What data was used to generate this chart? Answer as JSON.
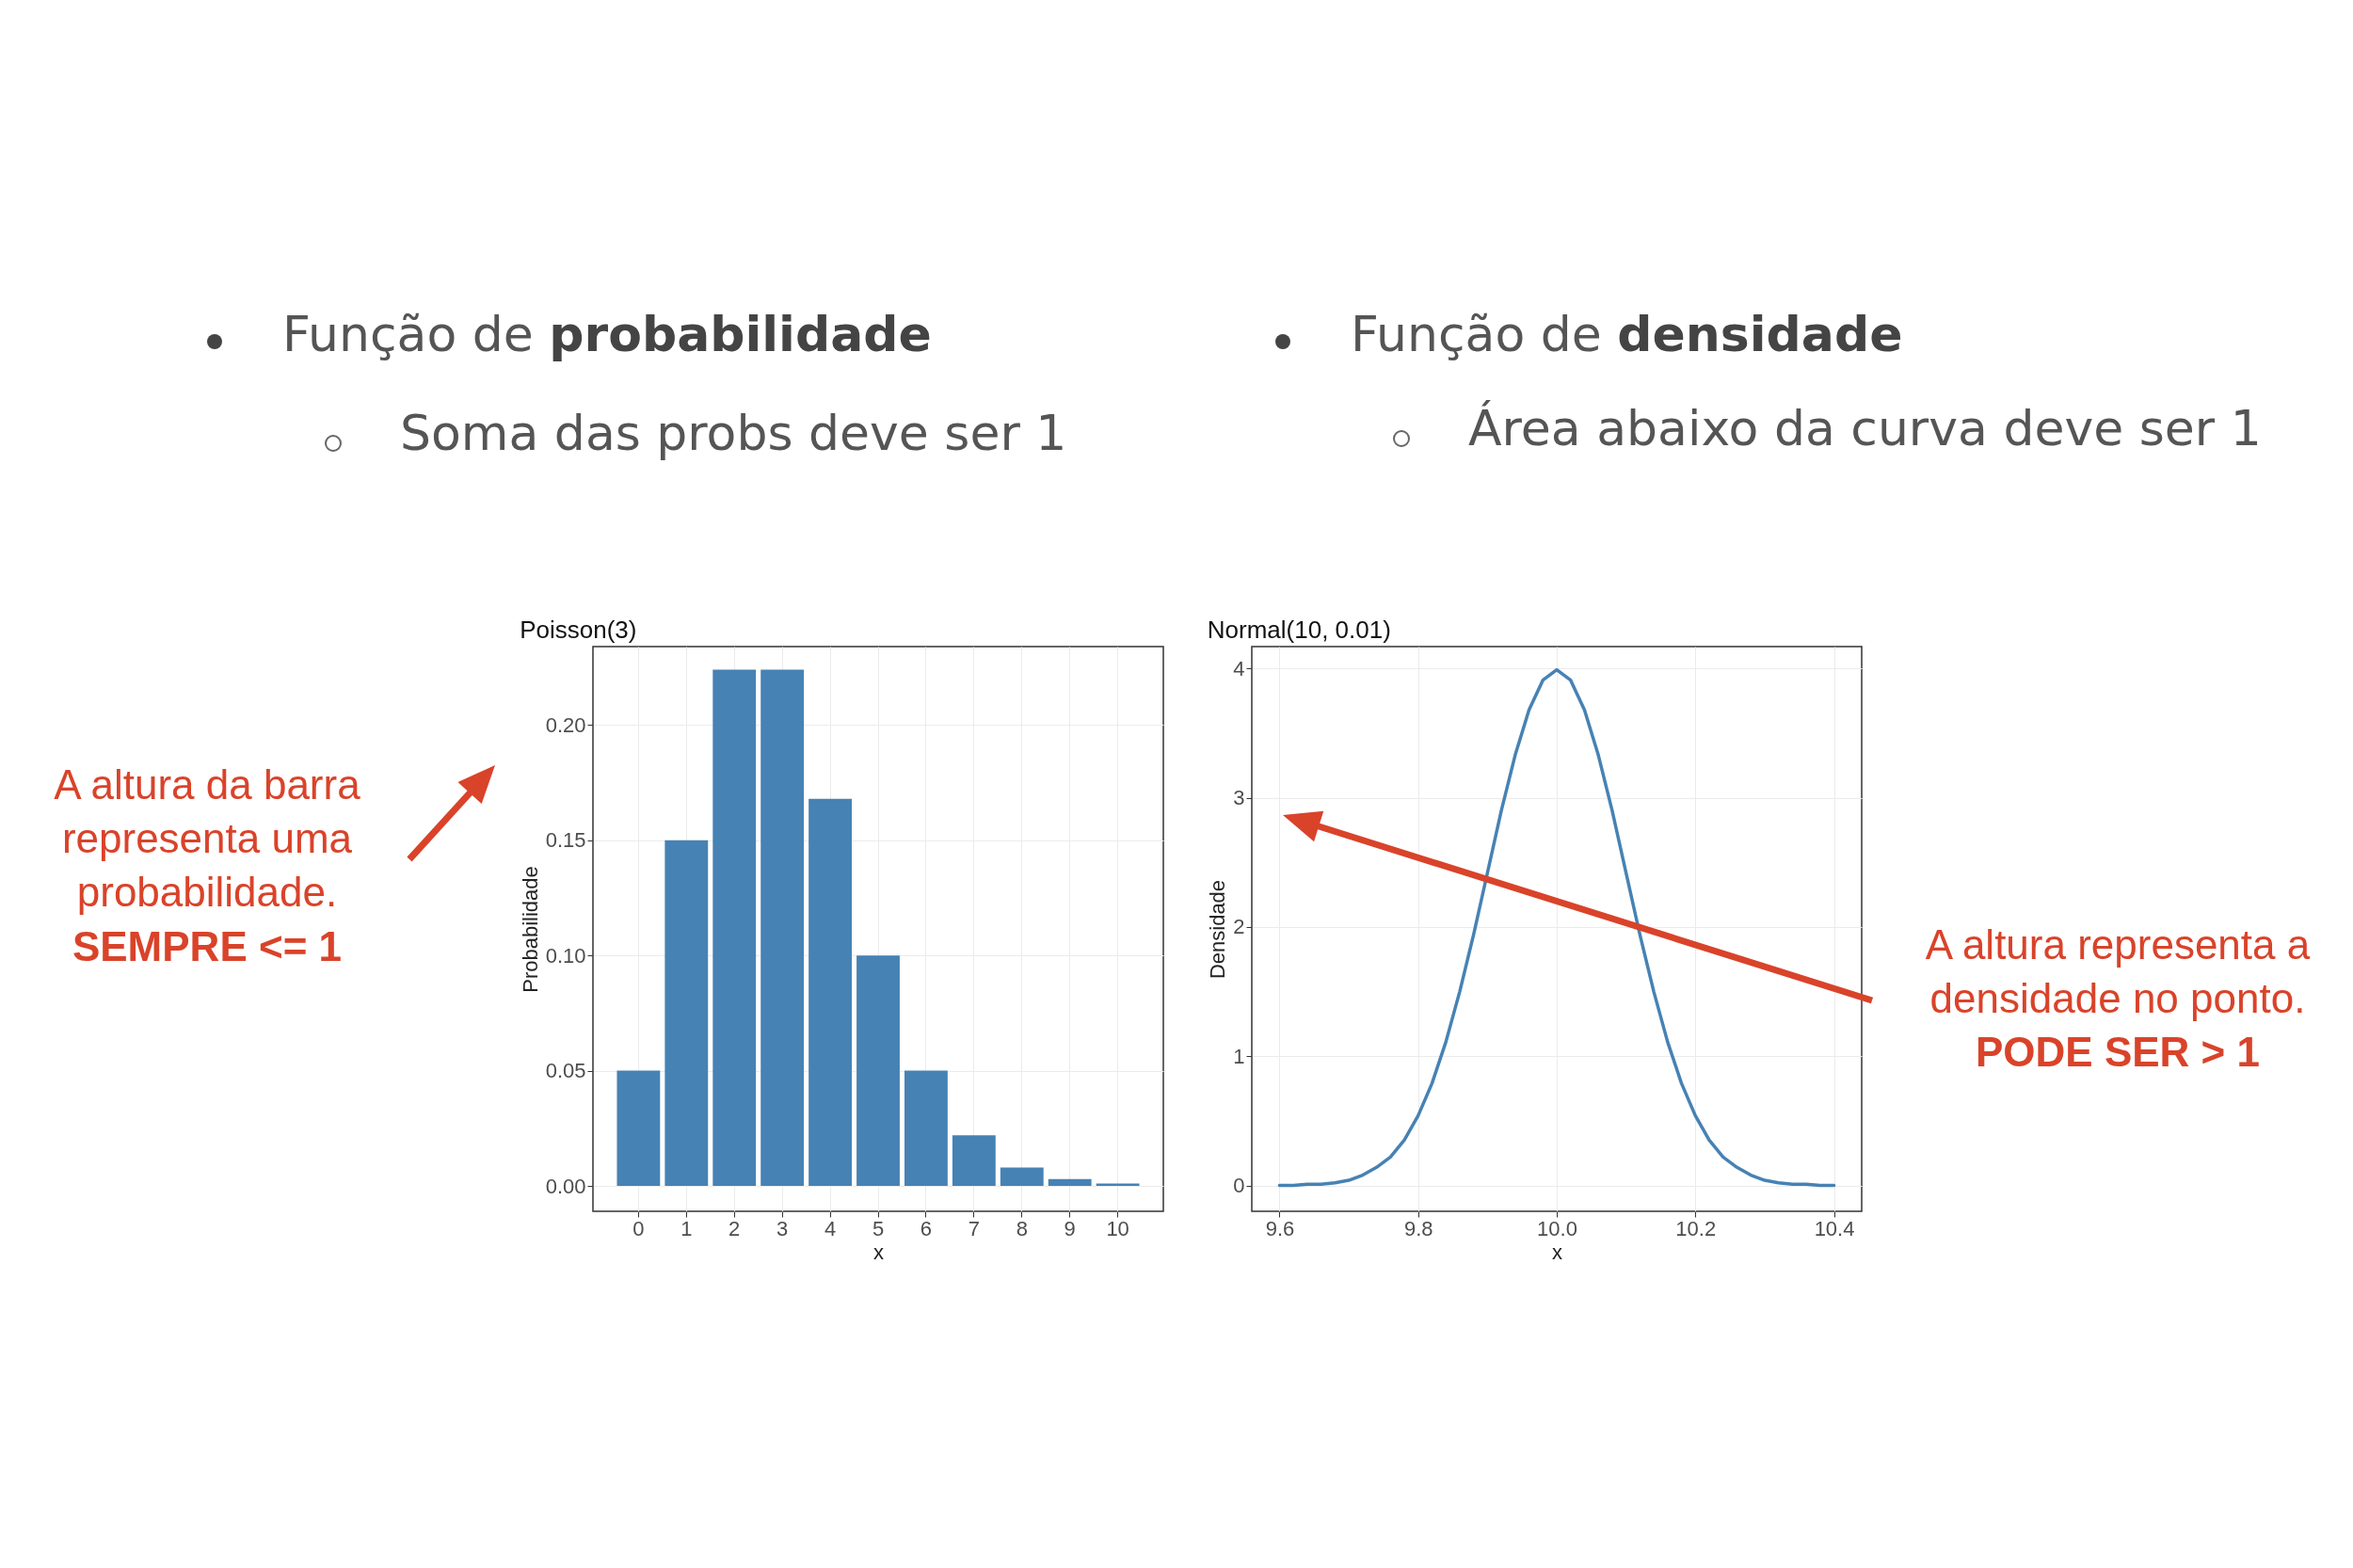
{
  "chart_data": [
    {
      "type": "bar",
      "title": "Poisson(3)",
      "xlabel": "x",
      "ylabel": "Probabilidade",
      "categories": [
        "0",
        "1",
        "2",
        "3",
        "4",
        "5",
        "6",
        "7",
        "8",
        "9",
        "10"
      ],
      "values": [
        0.05,
        0.15,
        0.224,
        0.224,
        0.168,
        0.1,
        0.05,
        0.022,
        0.008,
        0.003,
        0.001
      ],
      "color": "#4682b4",
      "ylim": [
        -0.011,
        0.234
      ],
      "yticks": [
        {
          "value": 0,
          "label": "0.00"
        },
        {
          "value": 0.05,
          "label": "0.05"
        },
        {
          "value": 0.1,
          "label": "0.10"
        },
        {
          "value": 0.15,
          "label": "0.15"
        },
        {
          "value": 0.2,
          "label": "0.20"
        }
      ],
      "grid": true,
      "annotations": [
        "Função de probabilidade",
        "Soma das probs deve ser 1",
        "A altura da barra representa uma probabilidade.",
        "SEMPRE <= 1"
      ]
    },
    {
      "type": "line",
      "title": "Normal(10, 0.01)",
      "xlabel": "x",
      "ylabel": "Densidade",
      "x": [
        9.6,
        9.62,
        9.64,
        9.66,
        9.68,
        9.7,
        9.72,
        9.74,
        9.76,
        9.78,
        9.8,
        9.82,
        9.84,
        9.86,
        9.88,
        9.9,
        9.92,
        9.94,
        9.96,
        9.98,
        10.0,
        10.02,
        10.04,
        10.06,
        10.08,
        10.1,
        10.12,
        10.14,
        10.16,
        10.18,
        10.2,
        10.22,
        10.24,
        10.26,
        10.28,
        10.3,
        10.32,
        10.34,
        10.36,
        10.38,
        10.4
      ],
      "values": [
        0.0,
        0.0,
        0.01,
        0.01,
        0.02,
        0.04,
        0.08,
        0.14,
        0.22,
        0.35,
        0.54,
        0.79,
        1.11,
        1.5,
        1.94,
        2.42,
        2.9,
        3.33,
        3.68,
        3.91,
        3.99,
        3.91,
        3.68,
        3.33,
        2.9,
        2.42,
        1.94,
        1.5,
        1.11,
        0.79,
        0.54,
        0.35,
        0.22,
        0.14,
        0.08,
        0.04,
        0.02,
        0.01,
        0.01,
        0.0,
        0.0
      ],
      "color": "#4682b4",
      "xlim": [
        9.56,
        10.44
      ],
      "xticks": [
        9.6,
        9.8,
        {
          "value": 10,
          "label": "10.0"
        },
        10.2,
        10.4
      ],
      "ylim": [
        -0.2,
        4.17
      ],
      "yticks": [
        0,
        1,
        2,
        3,
        4
      ],
      "grid": true,
      "annotations": [
        "Função de densidade",
        "Área abaixo da curva deve ser 1",
        "A altura representa a densidade no ponto.",
        "PODE SER > 1"
      ]
    }
  ]
}
